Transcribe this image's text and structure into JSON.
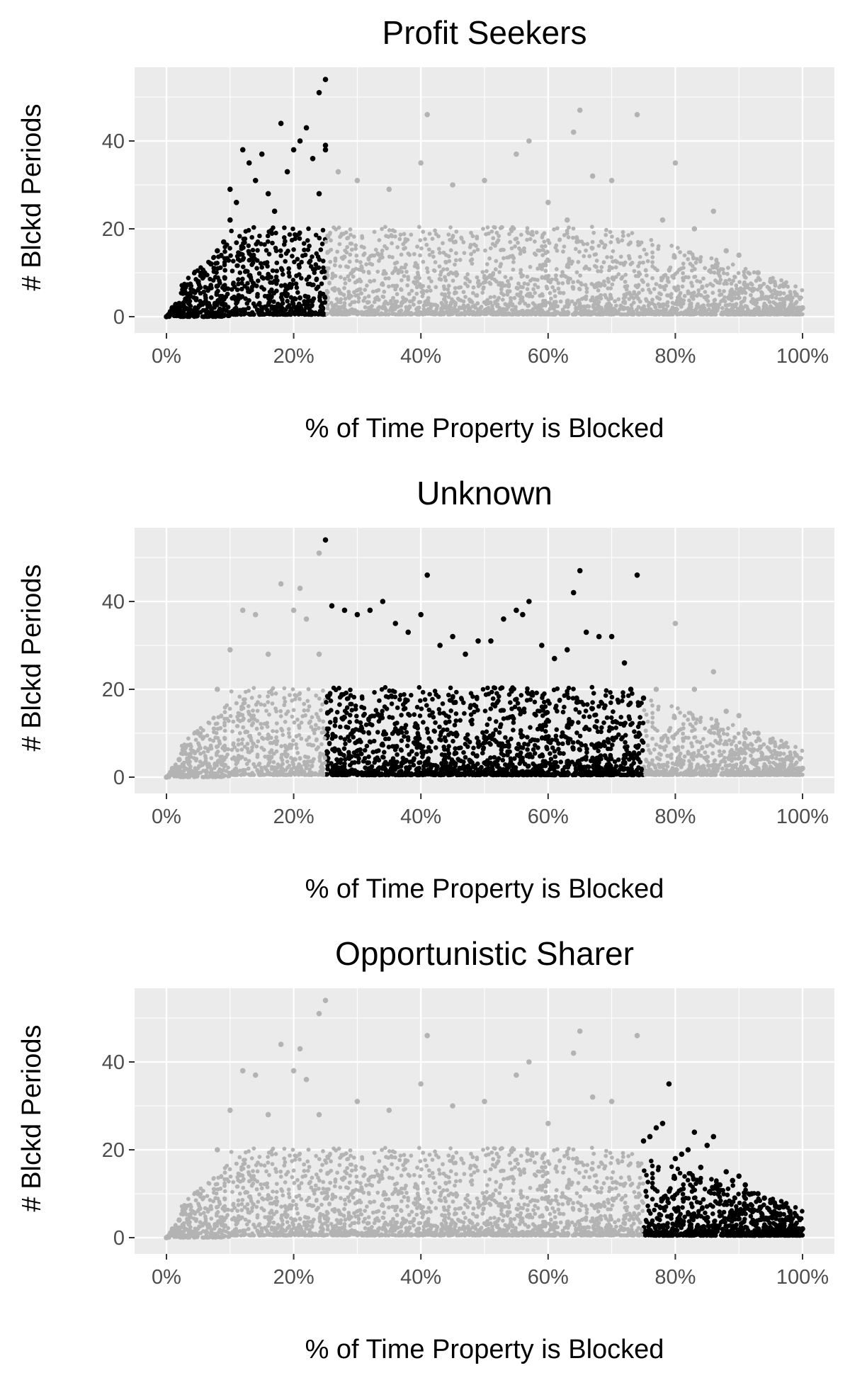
{
  "chart_data": [
    {
      "type": "scatter",
      "title": "Profit Seekers",
      "xlabel": "% of Time Property is Blocked",
      "ylabel": "# Blckd Periods",
      "xlim": [
        0,
        100
      ],
      "ylim": [
        0,
        55
      ],
      "x_ticks": [
        "0%",
        "20%",
        "40%",
        "60%",
        "80%",
        "100%"
      ],
      "y_ticks": [
        "0",
        "20",
        "40"
      ],
      "grid": true,
      "highlight_range": [
        0,
        25
      ],
      "colors": {
        "highlight": "#000000",
        "background": "#b3b3b3",
        "panel": "#ebebeb"
      },
      "series": [
        {
          "values": [
            [
              0,
              0
            ],
            [
              1,
              1
            ],
            [
              1,
              2
            ],
            [
              2,
              3
            ],
            [
              3,
              4
            ],
            [
              4,
              6
            ],
            [
              5,
              8
            ],
            [
              6,
              10
            ],
            [
              7,
              12
            ],
            [
              8,
              15
            ],
            [
              9,
              17
            ],
            [
              10,
              22
            ],
            [
              10,
              29
            ],
            [
              11,
              26
            ],
            [
              12,
              38
            ],
            [
              13,
              35
            ],
            [
              14,
              31
            ],
            [
              15,
              37
            ],
            [
              16,
              28
            ],
            [
              17,
              24
            ],
            [
              18,
              44
            ],
            [
              19,
              33
            ],
            [
              20,
              38
            ],
            [
              21,
              40
            ],
            [
              22,
              43
            ],
            [
              23,
              36
            ],
            [
              24,
              28
            ],
            [
              24,
              51
            ],
            [
              25,
              39
            ],
            [
              25,
              38
            ]
          ]
        },
        {
          "values": [
            [
              25,
              54
            ],
            [
              27,
              33
            ],
            [
              30,
              31
            ],
            [
              35,
              29
            ],
            [
              40,
              35
            ],
            [
              41,
              46
            ],
            [
              45,
              30
            ],
            [
              50,
              31
            ],
            [
              55,
              37
            ],
            [
              57,
              40
            ],
            [
              60,
              26
            ],
            [
              63,
              22
            ],
            [
              64,
              42
            ],
            [
              65,
              47
            ],
            [
              67,
              32
            ],
            [
              70,
              31
            ],
            [
              74,
              46
            ],
            [
              78,
              22
            ],
            [
              80,
              35
            ],
            [
              83,
              20
            ],
            [
              86,
              24
            ],
            [
              88,
              15
            ],
            [
              90,
              14
            ],
            [
              93,
              10
            ],
            [
              95,
              8
            ],
            [
              97,
              7
            ],
            [
              99,
              5
            ],
            [
              100,
              2
            ]
          ]
        }
      ]
    },
    {
      "type": "scatter",
      "title": "Unknown",
      "xlabel": "% of Time Property is Blocked",
      "ylabel": "# Blckd Periods",
      "xlim": [
        0,
        100
      ],
      "ylim": [
        0,
        55
      ],
      "x_ticks": [
        "0%",
        "20%",
        "40%",
        "60%",
        "80%",
        "100%"
      ],
      "y_ticks": [
        "0",
        "20",
        "40"
      ],
      "grid": true,
      "highlight_range": [
        25,
        75
      ],
      "colors": {
        "highlight": "#000000",
        "background": "#b3b3b3",
        "panel": "#ebebeb"
      },
      "series": [
        {
          "values": [
            [
              25,
              54
            ],
            [
              26,
              39
            ],
            [
              28,
              38
            ],
            [
              30,
              37
            ],
            [
              32,
              38
            ],
            [
              34,
              40
            ],
            [
              36,
              35
            ],
            [
              38,
              33
            ],
            [
              40,
              37
            ],
            [
              41,
              46
            ],
            [
              43,
              30
            ],
            [
              45,
              32
            ],
            [
              47,
              28
            ],
            [
              49,
              31
            ],
            [
              51,
              31
            ],
            [
              53,
              36
            ],
            [
              55,
              38
            ],
            [
              56,
              37
            ],
            [
              57,
              40
            ],
            [
              59,
              30
            ],
            [
              61,
              27
            ],
            [
              63,
              29
            ],
            [
              64,
              42
            ],
            [
              65,
              47
            ],
            [
              66,
              33
            ],
            [
              68,
              32
            ],
            [
              70,
              32
            ],
            [
              72,
              26
            ],
            [
              73,
              20
            ],
            [
              74,
              46
            ],
            [
              75,
              18
            ]
          ]
        },
        {
          "values": [
            [
              0,
              0
            ],
            [
              2,
              4
            ],
            [
              5,
              10
            ],
            [
              8,
              20
            ],
            [
              10,
              29
            ],
            [
              12,
              38
            ],
            [
              14,
              37
            ],
            [
              16,
              28
            ],
            [
              18,
              44
            ],
            [
              20,
              38
            ],
            [
              21,
              43
            ],
            [
              22,
              36
            ],
            [
              24,
              28
            ],
            [
              24,
              51
            ],
            [
              77,
              20
            ],
            [
              80,
              35
            ],
            [
              83,
              20
            ],
            [
              86,
              24
            ],
            [
              88,
              15
            ],
            [
              90,
              14
            ],
            [
              93,
              10
            ],
            [
              95,
              8
            ],
            [
              97,
              7
            ],
            [
              99,
              5
            ],
            [
              100,
              2
            ]
          ]
        }
      ]
    },
    {
      "type": "scatter",
      "title": "Opportunistic Sharer",
      "xlabel": "% of Time Property is Blocked",
      "ylabel": "# Blckd Periods",
      "xlim": [
        0,
        100
      ],
      "ylim": [
        0,
        55
      ],
      "x_ticks": [
        "0%",
        "20%",
        "40%",
        "60%",
        "80%",
        "100%"
      ],
      "y_ticks": [
        "0",
        "20",
        "40"
      ],
      "grid": true,
      "highlight_range": [
        75,
        100
      ],
      "colors": {
        "highlight": "#000000",
        "background": "#b3b3b3",
        "panel": "#ebebeb"
      },
      "series": [
        {
          "values": [
            [
              75,
              22
            ],
            [
              76,
              23
            ],
            [
              77,
              25
            ],
            [
              78,
              26
            ],
            [
              79,
              35
            ],
            [
              80,
              18
            ],
            [
              81,
              19
            ],
            [
              82,
              20
            ],
            [
              83,
              24
            ],
            [
              84,
              16
            ],
            [
              85,
              21
            ],
            [
              86,
              23
            ],
            [
              87,
              12
            ],
            [
              88,
              15
            ],
            [
              89,
              13
            ],
            [
              90,
              14
            ],
            [
              91,
              12
            ],
            [
              92,
              10
            ],
            [
              93,
              10
            ],
            [
              94,
              9
            ],
            [
              95,
              8
            ],
            [
              96,
              7
            ],
            [
              97,
              7
            ],
            [
              98,
              6
            ],
            [
              99,
              5
            ],
            [
              100,
              2
            ]
          ]
        },
        {
          "values": [
            [
              0,
              0
            ],
            [
              2,
              4
            ],
            [
              5,
              10
            ],
            [
              8,
              20
            ],
            [
              10,
              29
            ],
            [
              12,
              38
            ],
            [
              14,
              37
            ],
            [
              16,
              28
            ],
            [
              18,
              44
            ],
            [
              20,
              38
            ],
            [
              21,
              43
            ],
            [
              22,
              36
            ],
            [
              24,
              28
            ],
            [
              24,
              51
            ],
            [
              25,
              54
            ],
            [
              30,
              31
            ],
            [
              35,
              29
            ],
            [
              40,
              35
            ],
            [
              41,
              46
            ],
            [
              45,
              30
            ],
            [
              50,
              31
            ],
            [
              55,
              37
            ],
            [
              57,
              40
            ],
            [
              60,
              26
            ],
            [
              64,
              42
            ],
            [
              65,
              47
            ],
            [
              67,
              32
            ],
            [
              70,
              31
            ],
            [
              74,
              46
            ]
          ]
        }
      ]
    }
  ]
}
